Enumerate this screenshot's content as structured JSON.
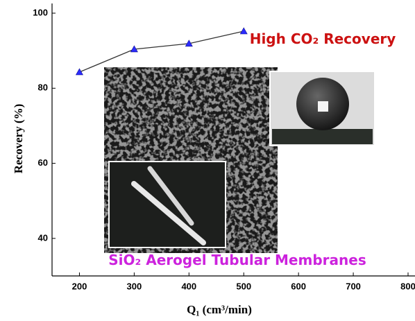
{
  "chart_data": {
    "type": "line",
    "xlabel": "Q₁ (cm³/min)",
    "ylabel": "Recovery (%)",
    "x": [
      200,
      300,
      400,
      500
    ],
    "series": [
      {
        "values": [
          84.3,
          90.4,
          91.9,
          95.2
        ],
        "color": "#333333",
        "marker_color": "#2b2bff"
      }
    ],
    "xlim": [
      150,
      800
    ],
    "xticks": [
      200,
      300,
      400,
      500,
      600,
      700,
      800
    ],
    "ylim": [
      30,
      100
    ],
    "yticks": [
      40,
      60,
      80,
      100
    ],
    "annotations": [
      {
        "text": "High CO₂ Recovery",
        "color": "#cc1111"
      },
      {
        "text": "SiO₂ Aerogel Tubular Membranes",
        "color": "#cc22dd"
      }
    ]
  }
}
